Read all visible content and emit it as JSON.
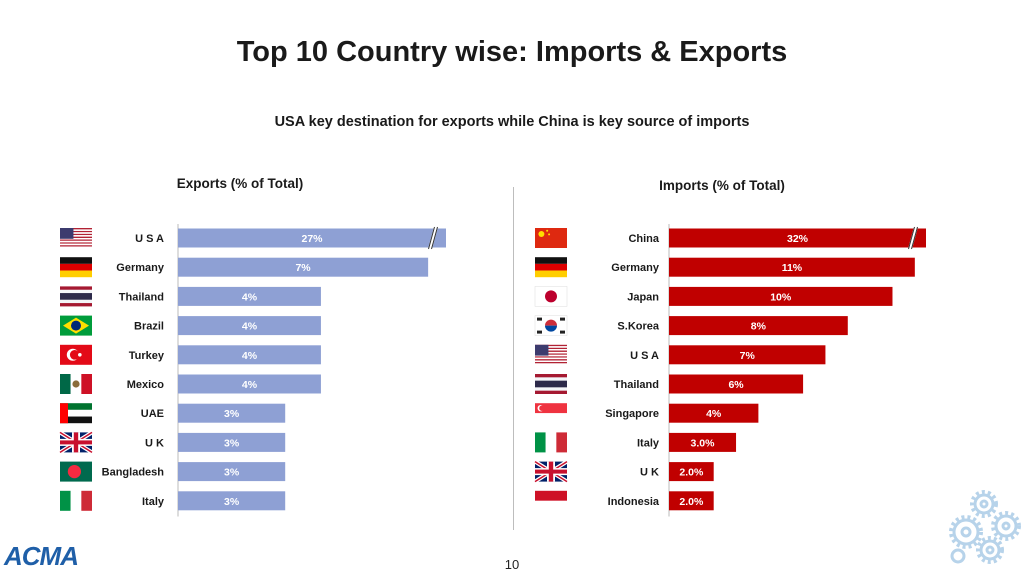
{
  "title": "Top 10 Country wise: Imports & Exports",
  "subtitle": "USA key destination for exports while China is key source of imports",
  "footer": {
    "logo_text": "ACMA",
    "page_number": "10"
  },
  "chart_data": [
    {
      "type": "bar",
      "orientation": "horizontal",
      "title": "Exports (% of Total)",
      "categories": [
        "U S A",
        "Germany",
        "Thailand",
        "Brazil",
        "Turkey",
        "Mexico",
        "UAE",
        "U K",
        "Bangladesh",
        "Italy"
      ],
      "values": [
        27,
        7,
        4,
        4,
        4,
        4,
        3,
        3,
        3,
        3
      ],
      "labels": [
        "27%",
        "7%",
        "4%",
        "4%",
        "4%",
        "4%",
        "3%",
        "3%",
        "3%",
        "3%"
      ],
      "bar_color": "#8ea0d4",
      "axis_break_on_first": true,
      "flags": [
        "usa",
        "germany",
        "thailand",
        "brazil",
        "turkey",
        "mexico",
        "uae",
        "uk",
        "bangladesh",
        "italy"
      ]
    },
    {
      "type": "bar",
      "orientation": "horizontal",
      "title": "Imports (% of Total)",
      "categories": [
        "China",
        "Germany",
        "Japan",
        "S.Korea",
        "U S A",
        "Thailand",
        "Singapore",
        "Italy",
        "U K",
        "Indonesia"
      ],
      "values": [
        32,
        11,
        10,
        8,
        7,
        6,
        4,
        3.0,
        2.0,
        2.0
      ],
      "labels": [
        "32%",
        "11%",
        "10%",
        "8%",
        "7%",
        "6%",
        "4%",
        "3.0%",
        "2.0%",
        "2.0%"
      ],
      "bar_color": "#c00000",
      "axis_break_on_first": true,
      "flags": [
        "china",
        "germany",
        "japan",
        "skorea",
        "usa",
        "thailand",
        "singapore",
        "italy",
        "uk",
        "indonesia"
      ]
    }
  ]
}
